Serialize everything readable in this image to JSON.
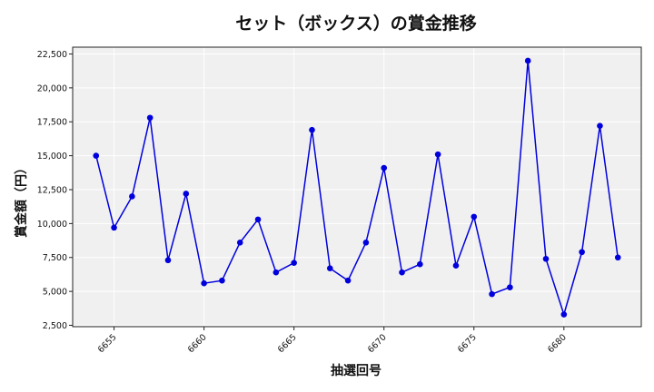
{
  "chart_data": {
    "type": "line",
    "title": "セット（ボックス）の賞金推移",
    "xlabel": "抽選回号",
    "ylabel": "賞金額（円）",
    "x": [
      6654,
      6655,
      6656,
      6657,
      6658,
      6659,
      6660,
      6661,
      6662,
      6663,
      6664,
      6665,
      6666,
      6667,
      6668,
      6669,
      6670,
      6671,
      6672,
      6673,
      6674,
      6675,
      6676,
      6677,
      6678,
      6679,
      6680,
      6681,
      6682,
      6683
    ],
    "series": [
      {
        "values": [
          15000,
          9700,
          12000,
          17800,
          7300,
          12200,
          5600,
          5800,
          8600,
          10300,
          6400,
          7100,
          16900,
          6700,
          5800,
          8600,
          14100,
          6400,
          7000,
          15100,
          6900,
          10500,
          4800,
          5300,
          22000,
          7400,
          3300,
          7900,
          17200,
          7500
        ]
      }
    ],
    "xlim": [
      6652.7,
      6684.3
    ],
    "ylim": [
      2400,
      23000
    ],
    "x_ticks": [
      6655,
      6660,
      6665,
      6670,
      6675,
      6680
    ],
    "y_ticks": [
      2500,
      5000,
      7500,
      10000,
      12500,
      15000,
      17500,
      20000,
      22500
    ],
    "y_tick_labels": [
      "2,500",
      "5,000",
      "7,500",
      "10,000",
      "12,500",
      "15,000",
      "17,500",
      "20,000",
      "22,500"
    ],
    "grid": true,
    "colors": {
      "line": "#0000dd",
      "marker": "#0000dd",
      "plot_bg": "#f0f0f0",
      "grid": "#ffffff"
    }
  }
}
